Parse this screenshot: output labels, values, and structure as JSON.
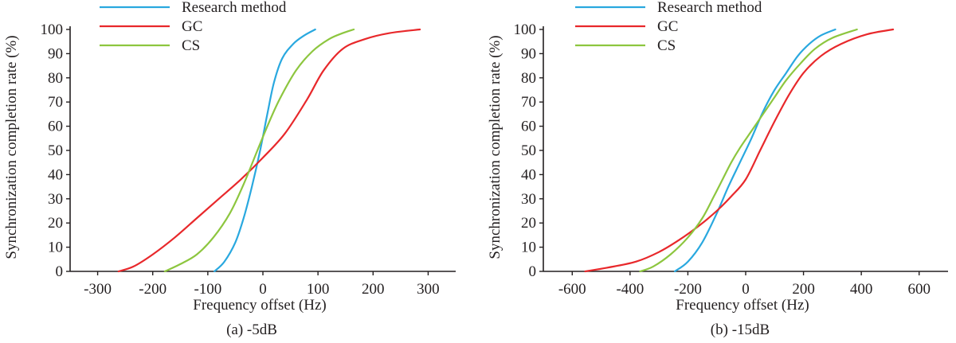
{
  "chart_data": [
    {
      "type": "line",
      "caption": "(a) -5dB",
      "xlabel": "Frequency offset (Hz)",
      "ylabel": "Synchronization completion rate (%)",
      "xlim": [
        -350,
        350
      ],
      "ylim": [
        0,
        100
      ],
      "xticks": [
        -300,
        -200,
        -100,
        0,
        100,
        200,
        300
      ],
      "yticks": [
        0,
        10,
        20,
        30,
        40,
        50,
        60,
        70,
        80,
        90,
        100
      ],
      "legend_position": "top-left",
      "grid": false,
      "series": [
        {
          "name": "Research method",
          "color": "#29a8df",
          "points": [
            [
              -88,
              0
            ],
            [
              -70,
              4
            ],
            [
              -50,
              12
            ],
            [
              -35,
              22
            ],
            [
              -20,
              35
            ],
            [
              -5,
              50
            ],
            [
              8,
              65
            ],
            [
              20,
              78
            ],
            [
              35,
              88
            ],
            [
              55,
              94
            ],
            [
              75,
              97.5
            ],
            [
              95,
              100
            ]
          ]
        },
        {
          "name": "GC",
          "color": "#e8282b",
          "points": [
            [
              -262,
              0
            ],
            [
              -235,
              2
            ],
            [
              -200,
              7
            ],
            [
              -160,
              14
            ],
            [
              -120,
              22
            ],
            [
              -80,
              30
            ],
            [
              -40,
              38
            ],
            [
              0,
              47
            ],
            [
              40,
              57
            ],
            [
              80,
              71
            ],
            [
              110,
              83
            ],
            [
              145,
              92
            ],
            [
              185,
              96
            ],
            [
              230,
              98.5
            ],
            [
              285,
              100
            ]
          ]
        },
        {
          "name": "CS",
          "color": "#8dc63f",
          "points": [
            [
              -178,
              0
            ],
            [
              -150,
              3
            ],
            [
              -120,
              7
            ],
            [
              -90,
              14
            ],
            [
              -60,
              24
            ],
            [
              -35,
              36
            ],
            [
              -10,
              50
            ],
            [
              10,
              61
            ],
            [
              30,
              71
            ],
            [
              60,
              83
            ],
            [
              90,
              91
            ],
            [
              120,
              96
            ],
            [
              145,
              98.5
            ],
            [
              165,
              100
            ]
          ]
        }
      ]
    },
    {
      "type": "line",
      "caption": "(b) -15dB",
      "xlabel": "Frequency offset (Hz)",
      "ylabel": "Synchronization completion rate (%)",
      "xlim": [
        -700,
        700
      ],
      "ylim": [
        0,
        100
      ],
      "xticks": [
        -600,
        -400,
        -200,
        0,
        200,
        400,
        600
      ],
      "yticks": [
        0,
        10,
        20,
        30,
        40,
        50,
        60,
        70,
        80,
        90,
        100
      ],
      "legend_position": "top-left",
      "grid": false,
      "series": [
        {
          "name": "Research method",
          "color": "#29a8df",
          "points": [
            [
              -245,
              0
            ],
            [
              -200,
              4
            ],
            [
              -150,
              12
            ],
            [
              -100,
              24
            ],
            [
              -60,
              35
            ],
            [
              -20,
              45
            ],
            [
              20,
              55
            ],
            [
              60,
              66
            ],
            [
              100,
              75
            ],
            [
              140,
              82
            ],
            [
              180,
              89
            ],
            [
              220,
              94
            ],
            [
              260,
              97.5
            ],
            [
              310,
              100
            ]
          ]
        },
        {
          "name": "GC",
          "color": "#e8282b",
          "points": [
            [
              -555,
              0
            ],
            [
              -480,
              1.5
            ],
            [
              -380,
              4
            ],
            [
              -300,
              8
            ],
            [
              -230,
              13
            ],
            [
              -160,
              19
            ],
            [
              -100,
              25
            ],
            [
              -50,
              31
            ],
            [
              0,
              38
            ],
            [
              50,
              50
            ],
            [
              100,
              62
            ],
            [
              150,
              73
            ],
            [
              200,
              82
            ],
            [
              260,
              89
            ],
            [
              330,
              94
            ],
            [
              420,
              98
            ],
            [
              510,
              100
            ]
          ]
        },
        {
          "name": "CS",
          "color": "#8dc63f",
          "points": [
            [
              -365,
              0
            ],
            [
              -320,
              2
            ],
            [
              -260,
              7
            ],
            [
              -200,
              14
            ],
            [
              -150,
              22
            ],
            [
              -110,
              31
            ],
            [
              -80,
              38
            ],
            [
              -50,
              45
            ],
            [
              -20,
              51
            ],
            [
              20,
              58
            ],
            [
              60,
              65
            ],
            [
              100,
              72
            ],
            [
              140,
              79
            ],
            [
              190,
              86
            ],
            [
              240,
              92
            ],
            [
              300,
              96.5
            ],
            [
              385,
              100
            ]
          ]
        }
      ]
    }
  ]
}
